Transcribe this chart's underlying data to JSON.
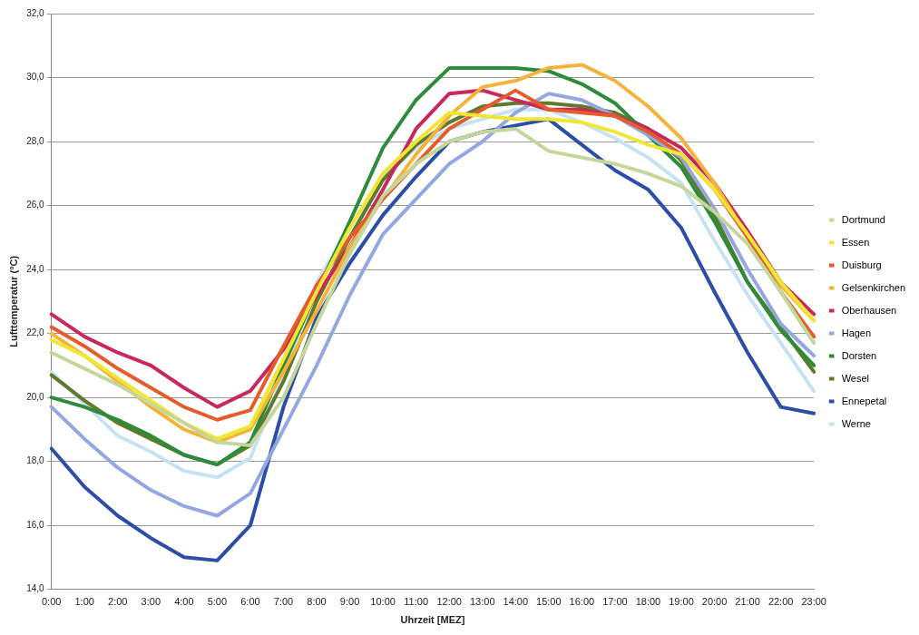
{
  "chart_data": {
    "type": "line",
    "xlabel": "Uhrzeit [MEZ]",
    "ylabel": "Lufttemperatur (°C)",
    "categories": [
      "0:00",
      "1:00",
      "2:00",
      "3:00",
      "4:00",
      "5:00",
      "6:00",
      "7:00",
      "8:00",
      "9:00",
      "10:00",
      "11:00",
      "12:00",
      "13:00",
      "14:00",
      "15:00",
      "16:00",
      "17:00",
      "18:00",
      "19:00",
      "20:00",
      "21:00",
      "22:00",
      "23:00"
    ],
    "ylim": [
      14,
      32
    ],
    "yticks": [
      {
        "value": 14,
        "label": "14,0"
      },
      {
        "value": 16,
        "label": "16,0"
      },
      {
        "value": 18,
        "label": "18,0"
      },
      {
        "value": 20,
        "label": "20,0"
      },
      {
        "value": 22,
        "label": "22,0"
      },
      {
        "value": 24,
        "label": "24,0"
      },
      {
        "value": 26,
        "label": "26,0"
      },
      {
        "value": 28,
        "label": "28,0"
      },
      {
        "value": 30,
        "label": "30,0"
      },
      {
        "value": 32,
        "label": "32,0"
      }
    ],
    "grid": "y",
    "legend": "right",
    "marker": "none",
    "line_style": "solid",
    "series": [
      {
        "name": "Dortmund",
        "color": "#c4d79b",
        "values": [
          21.4,
          20.9,
          20.4,
          19.8,
          19.2,
          18.6,
          18.5,
          20.0,
          22.3,
          24.5,
          26.3,
          27.3,
          28.0,
          28.3,
          28.4,
          27.7,
          27.5,
          27.3,
          27.0,
          26.6,
          25.8,
          24.8,
          23.3,
          21.7
        ]
      },
      {
        "name": "Essen",
        "color": "#f0e634",
        "values": [
          21.8,
          21.3,
          20.6,
          19.9,
          19.2,
          18.7,
          19.1,
          21.2,
          23.3,
          25.3,
          27.0,
          28.0,
          28.9,
          28.8,
          28.7,
          28.7,
          28.6,
          28.3,
          27.9,
          27.6,
          26.5,
          25.1,
          23.6,
          22.4
        ]
      },
      {
        "name": "Duisburg",
        "color": "#e55b2b",
        "values": [
          22.2,
          21.6,
          20.9,
          20.3,
          19.7,
          19.3,
          19.6,
          21.6,
          23.5,
          25.0,
          26.2,
          27.3,
          28.4,
          29.0,
          29.6,
          29.0,
          28.9,
          28.8,
          28.3,
          27.6,
          26.5,
          25.0,
          23.3,
          21.9
        ]
      },
      {
        "name": "Gelsenkirchen",
        "color": "#f6b33c",
        "values": [
          22.0,
          21.3,
          20.5,
          19.7,
          19.0,
          18.6,
          19.0,
          20.8,
          22.7,
          24.7,
          26.2,
          27.6,
          28.8,
          29.7,
          29.9,
          30.3,
          30.4,
          29.9,
          29.1,
          28.1,
          26.7,
          25.0,
          23.5,
          22.4
        ]
      },
      {
        "name": "Oberhausen",
        "color": "#c8285a",
        "values": [
          22.6,
          21.9,
          21.4,
          21.0,
          20.3,
          19.7,
          20.2,
          21.5,
          23.2,
          24.7,
          26.5,
          28.4,
          29.5,
          29.6,
          29.3,
          29.0,
          29.0,
          28.8,
          28.4,
          27.8,
          26.7,
          25.2,
          23.6,
          22.6
        ]
      },
      {
        "name": "Hagen",
        "color": "#95a7e0",
        "values": [
          19.7,
          18.7,
          17.8,
          17.1,
          16.6,
          16.3,
          17.0,
          19.0,
          21.0,
          23.2,
          25.1,
          26.2,
          27.3,
          28.0,
          28.9,
          29.5,
          29.3,
          28.8,
          28.2,
          27.5,
          25.9,
          24.0,
          22.3,
          21.3
        ]
      },
      {
        "name": "Dorsten",
        "color": "#2e8b3a",
        "values": [
          20.0,
          19.7,
          19.3,
          18.8,
          18.2,
          17.9,
          18.6,
          21.0,
          23.3,
          25.5,
          27.8,
          29.3,
          30.3,
          30.3,
          30.3,
          30.2,
          29.8,
          29.2,
          28.2,
          27.2,
          25.5,
          23.6,
          22.1,
          21.0
        ]
      },
      {
        "name": "Wesel",
        "color": "#5e7a2a",
        "values": [
          20.7,
          19.9,
          19.2,
          18.7,
          18.2,
          17.9,
          18.5,
          20.5,
          23.0,
          25.0,
          26.8,
          27.9,
          28.6,
          29.1,
          29.2,
          29.2,
          29.1,
          28.9,
          28.4,
          27.4,
          25.7,
          23.6,
          22.2,
          20.8
        ]
      },
      {
        "name": "Ennepetal",
        "color": "#2c4ea8",
        "values": [
          18.4,
          17.2,
          16.3,
          15.6,
          15.0,
          14.9,
          16.0,
          19.7,
          22.5,
          24.2,
          25.7,
          26.9,
          28.0,
          28.3,
          28.5,
          28.7,
          27.9,
          27.1,
          26.5,
          25.3,
          23.3,
          21.4,
          19.7,
          19.5
        ]
      },
      {
        "name": "Werne",
        "color": "#c6e3f4",
        "values": [
          20.8,
          19.8,
          18.8,
          18.3,
          17.7,
          17.5,
          18.1,
          20.7,
          23.6,
          25.3,
          26.9,
          27.8,
          28.4,
          28.7,
          29.0,
          29.0,
          28.6,
          28.1,
          27.5,
          26.7,
          24.9,
          23.2,
          21.7,
          20.2
        ]
      }
    ]
  }
}
